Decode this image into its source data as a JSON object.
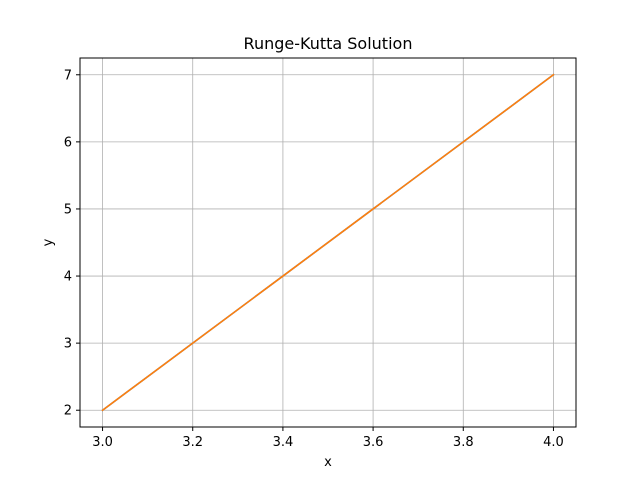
{
  "chart_data": {
    "type": "line",
    "title": "Runge-Kutta Solution",
    "xlabel": "x",
    "ylabel": "y",
    "xlim": [
      2.95,
      4.05
    ],
    "ylim": [
      1.75,
      7.25
    ],
    "xticks": [
      3.0,
      3.2,
      3.4,
      3.6,
      3.8,
      4.0
    ],
    "yticks": [
      2,
      3,
      4,
      5,
      6,
      7
    ],
    "xtick_labels": [
      "3.0",
      "3.2",
      "3.4",
      "3.6",
      "3.8",
      "4.0"
    ],
    "ytick_labels": [
      "2",
      "3",
      "4",
      "5",
      "6",
      "7"
    ],
    "grid": true,
    "series": [
      {
        "x": [
          3.0,
          3.2,
          3.4,
          3.6,
          3.8,
          4.0
        ],
        "values": [
          2,
          3,
          4,
          5,
          6,
          7
        ],
        "color": "#1f77b4"
      },
      {
        "x": [
          3.0,
          3.2,
          3.4,
          3.6,
          3.8,
          4.0
        ],
        "values": [
          2,
          3,
          4,
          5,
          6,
          7
        ],
        "color": "#ff7f0e"
      }
    ]
  },
  "colors": {
    "grid": "#b0b0b0",
    "axes": "#000000",
    "background": "#ffffff"
  }
}
